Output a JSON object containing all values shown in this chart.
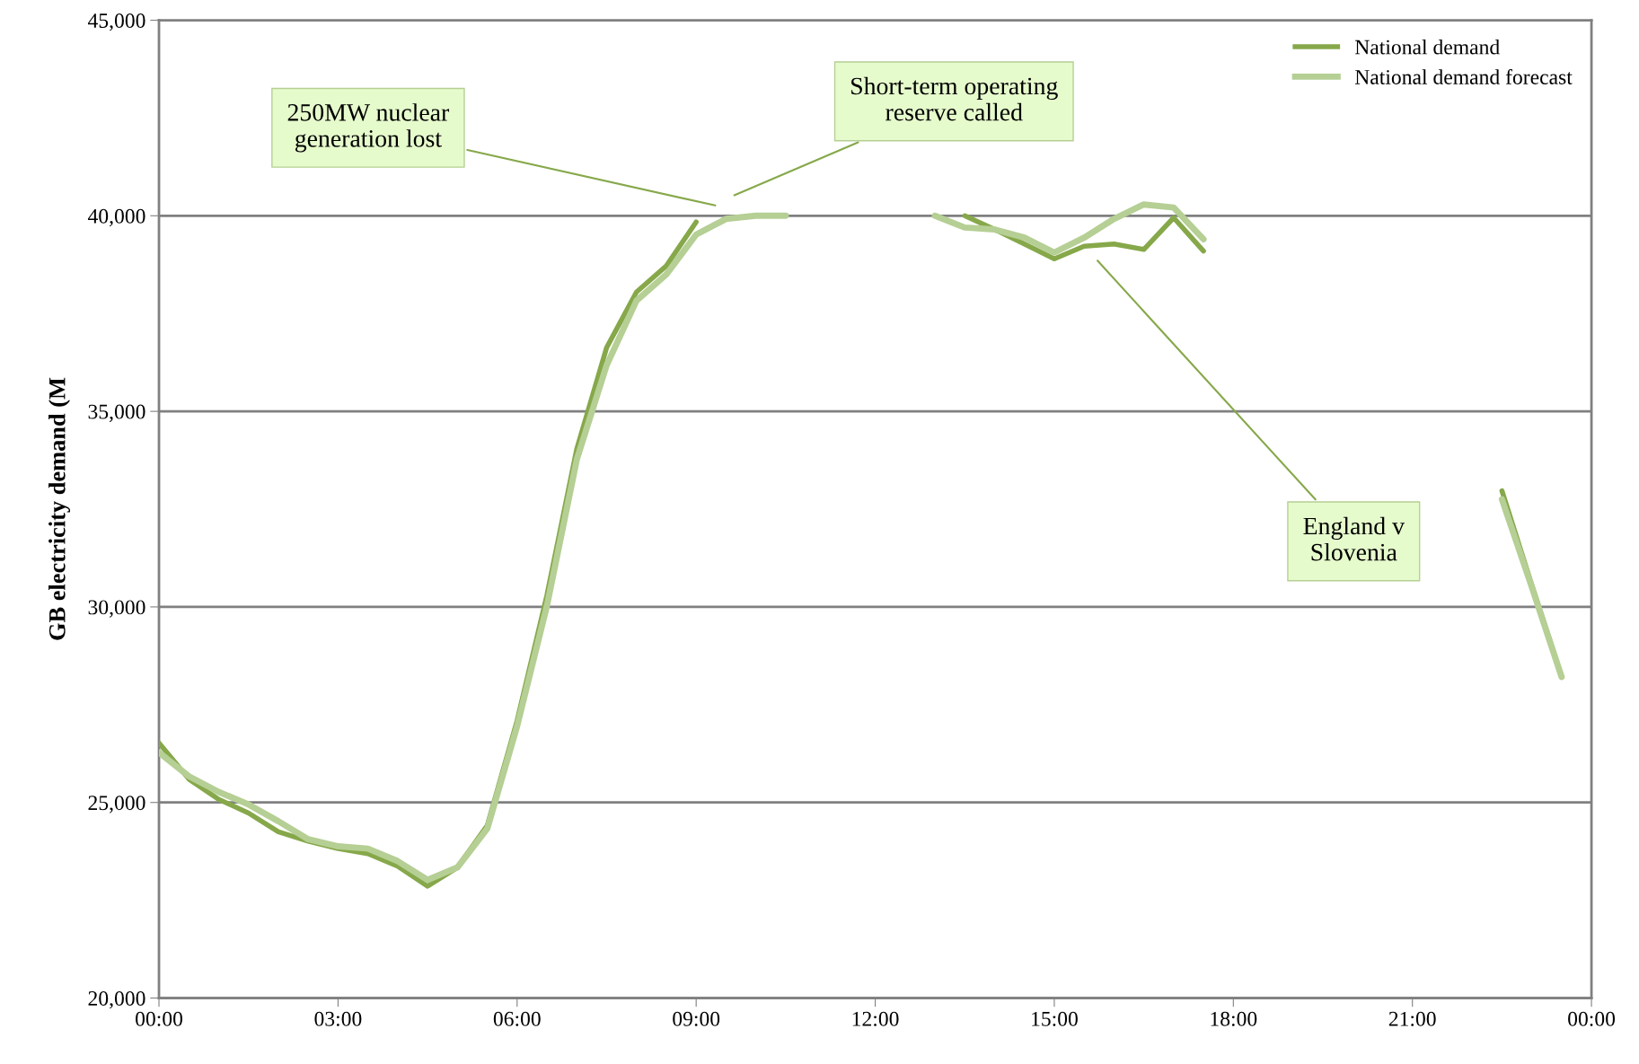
{
  "chart_data": {
    "type": "line",
    "ylabel": "GB electricity demand (M",
    "x": [
      0,
      0.5,
      1,
      1.5,
      2,
      2.5,
      3,
      3.5,
      4,
      4.5,
      5,
      5.5,
      6,
      6.5,
      7,
      7.5,
      8,
      8.5,
      9,
      9.5,
      10,
      10.5,
      11,
      11.5,
      12,
      12.5,
      13,
      13.5,
      14,
      14.5,
      15,
      15.5,
      16,
      16.5,
      17,
      17.5,
      18,
      18.5,
      19,
      19.5,
      20,
      20.5,
      21,
      21.5,
      22,
      22.5,
      23,
      23.5
    ],
    "series": [
      {
        "name": "National demand",
        "color": "#86a84a",
        "values": [
          26520,
          25600,
          25080,
          24730,
          24250,
          24010,
          23820,
          23690,
          23370,
          22860,
          23340,
          24410,
          27090,
          30300,
          34040,
          36630,
          38050,
          38720,
          39840,
          null,
          null,
          null,
          null,
          null,
          null,
          null,
          null,
          40000,
          39650,
          39280,
          38900,
          39220,
          39280,
          39140,
          39950,
          39100,
          null,
          null,
          null,
          null,
          null,
          null,
          null,
          null,
          null,
          32970,
          30560,
          28210
        ]
      },
      {
        "name": "National demand forecast",
        "color": "#b5cf94",
        "values": [
          26280,
          25670,
          25270,
          24950,
          24520,
          24060,
          23880,
          23820,
          23500,
          23020,
          23340,
          24330,
          26950,
          30030,
          33770,
          36180,
          37830,
          38500,
          39520,
          39920,
          40000,
          40000,
          null,
          null,
          null,
          null,
          40000,
          39700,
          39650,
          39440,
          39060,
          39440,
          39920,
          40290,
          40210,
          39400,
          null,
          null,
          null,
          null,
          null,
          null,
          null,
          null,
          null,
          32750,
          30510,
          28210
        ]
      }
    ],
    "xlim": [
      0,
      24
    ],
    "xticks": [
      {
        "value": 0,
        "label": "00:00"
      },
      {
        "value": 3,
        "label": "03:00"
      },
      {
        "value": 6,
        "label": "06:00"
      },
      {
        "value": 9,
        "label": "09:00"
      },
      {
        "value": 12,
        "label": "12:00"
      },
      {
        "value": 15,
        "label": "15:00"
      },
      {
        "value": 18,
        "label": "18:00"
      },
      {
        "value": 21,
        "label": "21:00"
      },
      {
        "value": 24,
        "label": "00:00"
      }
    ],
    "ylim": [
      20000,
      45000
    ],
    "yticks": [
      {
        "value": 20000,
        "label": "20,000"
      },
      {
        "value": 25000,
        "label": "25,000"
      },
      {
        "value": 30000,
        "label": "30,000"
      },
      {
        "value": 35000,
        "label": "35,000"
      },
      {
        "value": 40000,
        "label": "40,000"
      },
      {
        "value": 45000,
        "label": "45,000"
      }
    ],
    "grid": "y",
    "legend": "top right",
    "line_style": "solid",
    "marker": "none",
    "annotations": [
      "250MW nuclear\ngeneration lost",
      "Short-term operating\nreserve called",
      "England v\nSlovenia"
    ]
  }
}
